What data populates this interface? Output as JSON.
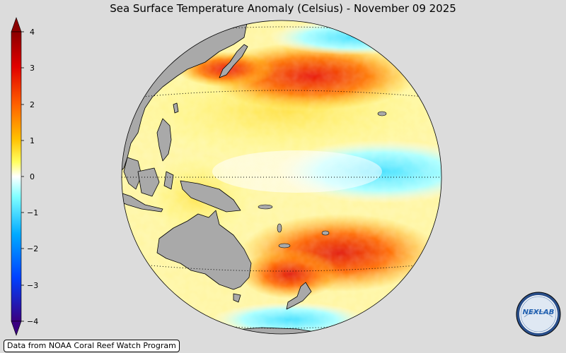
{
  "title": "Sea Surface Temperature Anomaly (Celsius) - November 09 2025",
  "attribution": "Data from NOAA Coral Reef Watch Program",
  "colorbar": {
    "ticks": [
      "4",
      "3",
      "2",
      "1",
      "0",
      "−1",
      "−2",
      "−3",
      "−4"
    ],
    "min": -4,
    "max": 4,
    "stops": [
      "#3a0080",
      "#0040ff",
      "#00aaff",
      "#80ffff",
      "#ffffff",
      "#ffff60",
      "#ffc000",
      "#ff6000",
      "#e00000",
      "#8b0000"
    ]
  },
  "logo": {
    "text": "NEXLAB"
  },
  "colors": {
    "background": "#dcdcdc",
    "land": "#a9a9a9",
    "ocean_neutral": "#ffffff"
  }
}
